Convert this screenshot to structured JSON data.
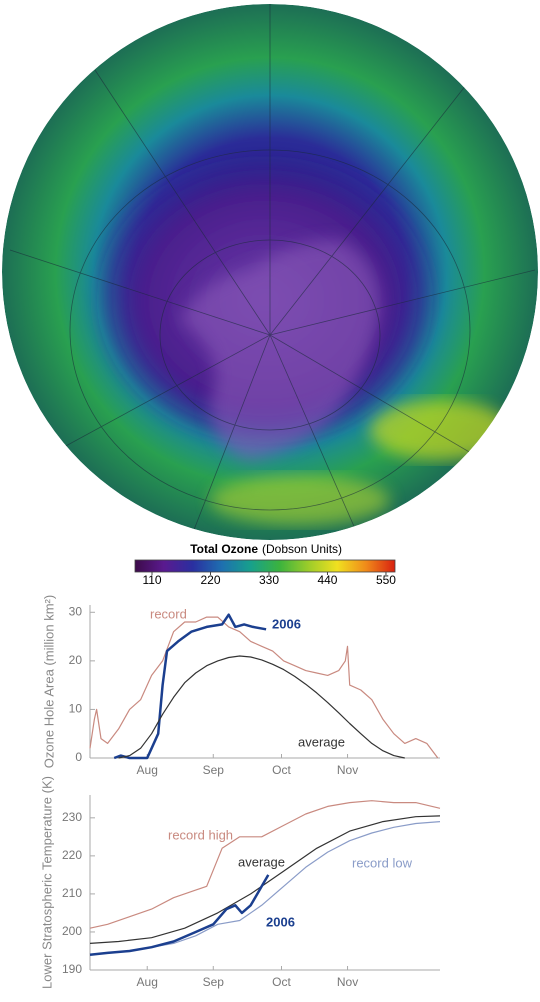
{
  "chart_data": [
    {
      "type": "colorbar",
      "title": "Total Ozone",
      "subtitle": "(Dobson Units)",
      "xlim": [
        78,
        567
      ],
      "xticks": [
        110,
        220,
        330,
        440,
        550
      ],
      "colors": [
        "#3d0b4a",
        "#5a1a8f",
        "#2a2fa0",
        "#1e6fb0",
        "#17a08c",
        "#3bb33e",
        "#9ccc2a",
        "#f0e020",
        "#f08a1a",
        "#d82010"
      ]
    },
    {
      "type": "line",
      "y_label": "Ozone Hole Area (million km²)",
      "xlim": [
        202,
        361
      ],
      "xticks": [
        {
          "value": 228,
          "label": "Aug"
        },
        {
          "value": 258,
          "label": "Sep"
        },
        {
          "value": 289,
          "label": "Oct"
        },
        {
          "value": 319,
          "label": "Nov"
        }
      ],
      "ylim": [
        0,
        31.5
      ],
      "yticks": [
        0,
        10,
        20,
        30
      ],
      "series": [
        {
          "name": "record",
          "color": "#c98a80",
          "x": [
            202,
            204,
            205,
            207,
            210,
            215,
            220,
            225,
            230,
            235,
            240,
            245,
            250,
            255,
            260,
            265,
            270,
            275,
            280,
            285,
            290,
            295,
            300,
            305,
            310,
            315,
            318,
            319,
            320,
            325,
            330,
            335,
            340,
            345,
            350,
            355,
            360
          ],
          "values": [
            2,
            8,
            10,
            4,
            3,
            6,
            10,
            12,
            17,
            20,
            26,
            28,
            28,
            29,
            29,
            27,
            26,
            24,
            23,
            22,
            20,
            19,
            18,
            17.5,
            17,
            18,
            20,
            23,
            15,
            14,
            12,
            8,
            5,
            3,
            4,
            3,
            0
          ]
        },
        {
          "name": "2006",
          "color": "#1b3f8f",
          "x": [
            213,
            216,
            220,
            228,
            230,
            233,
            235,
            237,
            242,
            248,
            255,
            262,
            265,
            268,
            272,
            276,
            282
          ],
          "values": [
            0,
            0.5,
            0,
            0,
            2,
            5,
            15,
            22,
            24,
            26,
            27,
            27.5,
            29.5,
            27,
            27.5,
            27,
            26.5
          ]
        },
        {
          "name": "average",
          "color": "#333333",
          "x": [
            215,
            220,
            225,
            230,
            235,
            240,
            245,
            250,
            255,
            260,
            265,
            270,
            275,
            280,
            285,
            290,
            295,
            300,
            305,
            310,
            315,
            320,
            325,
            330,
            335,
            340,
            345
          ],
          "values": [
            0,
            0.5,
            2,
            5,
            9,
            12.5,
            15.5,
            17.5,
            19,
            20,
            20.7,
            21,
            20.8,
            20.2,
            19.3,
            18.2,
            16.8,
            15.2,
            13.4,
            11.4,
            9.3,
            7.1,
            5,
            3,
            1.5,
            0.5,
            0
          ]
        }
      ]
    },
    {
      "type": "line",
      "y_label": "Lower Stratospheric Temperature (K)",
      "xlim": [
        202,
        361
      ],
      "xticks": [
        {
          "value": 228,
          "label": "Aug"
        },
        {
          "value": 258,
          "label": "Sep"
        },
        {
          "value": 289,
          "label": "Oct"
        },
        {
          "value": 319,
          "label": "Nov"
        }
      ],
      "ylim": [
        190,
        236
      ],
      "yticks": [
        190,
        200,
        210,
        220,
        230
      ],
      "series": [
        {
          "name": "record high",
          "color": "#c98a80",
          "x": [
            202,
            210,
            220,
            230,
            240,
            250,
            255,
            262,
            270,
            280,
            290,
            300,
            310,
            320,
            330,
            340,
            350,
            361
          ],
          "values": [
            201,
            202,
            204,
            206,
            209,
            211,
            212,
            222,
            225,
            225,
            228,
            231,
            233,
            234,
            234.5,
            234,
            234,
            232.5
          ]
        },
        {
          "name": "average",
          "color": "#333333",
          "x": [
            202,
            215,
            230,
            245,
            260,
            275,
            290,
            305,
            320,
            335,
            350,
            361
          ],
          "values": [
            197,
            197.5,
            198.5,
            201,
            205,
            210,
            216,
            222,
            226.5,
            229,
            230.3,
            230.5
          ]
        },
        {
          "name": "record low",
          "color": "#8a9cc8",
          "x": [
            202,
            220,
            240,
            250,
            260,
            270,
            280,
            290,
            300,
            310,
            320,
            330,
            340,
            350,
            361
          ],
          "values": [
            194,
            195,
            197,
            199,
            202,
            203,
            207,
            212,
            217,
            221,
            224,
            226,
            227.5,
            228.5,
            229
          ]
        },
        {
          "name": "2006",
          "color": "#1b3f8f",
          "x": [
            202,
            210,
            220,
            230,
            240,
            250,
            258,
            264,
            268,
            271,
            275,
            280,
            283
          ],
          "values": [
            194,
            194.5,
            195,
            196,
            197.5,
            200,
            202,
            206,
            207,
            205,
            207,
            212,
            215
          ]
        }
      ]
    }
  ]
}
